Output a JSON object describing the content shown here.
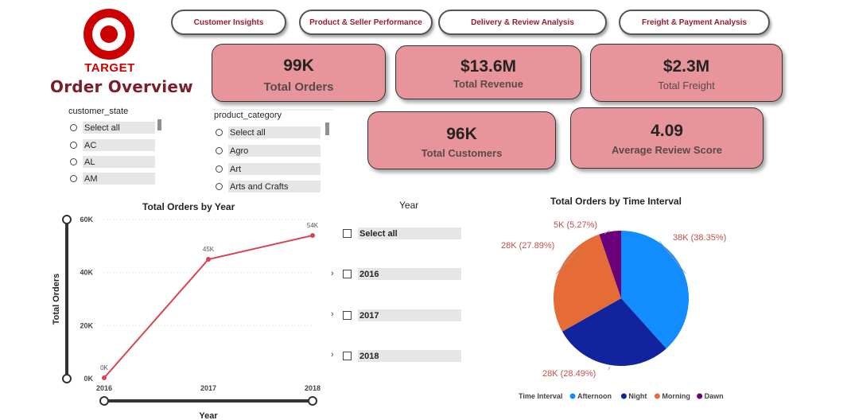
{
  "header": {
    "brand": "TARGET",
    "title": "Order Overview"
  },
  "nav": [
    {
      "label": "Customer Insights"
    },
    {
      "label": "Product & Seller Performance"
    },
    {
      "label": "Delivery & Review Analysis"
    },
    {
      "label": "Freight & Payment Analysis"
    }
  ],
  "kpis": {
    "orders": {
      "value": "99K",
      "label": "Total Orders"
    },
    "revenue": {
      "value": "$13.6M",
      "label": "Total Revenue"
    },
    "freight": {
      "value": "$2.3M",
      "label": "Total Freight"
    },
    "customers": {
      "value": "96K",
      "label": "Total Customers"
    },
    "review": {
      "value": "4.09",
      "label": "Average Review Score"
    }
  },
  "customer_state_slicer": {
    "title": "customer_state",
    "items": [
      "Select all",
      "AC",
      "AL",
      "AM"
    ]
  },
  "product_category_slicer": {
    "title": "product_category",
    "items": [
      "Select all",
      "Agro",
      "Art",
      "Arts and Crafts"
    ]
  },
  "year_slicer": {
    "title": "Year",
    "items": [
      "Select all",
      "2016",
      "2017",
      "2018"
    ]
  },
  "colors": {
    "brand_red": "#cc0000",
    "kpi_fill": "#e7949a",
    "line": "#d64550",
    "afternoon": "#118dff",
    "night": "#12239e",
    "morning": "#e66c37",
    "dawn": "#6b007b"
  },
  "chart_data": [
    {
      "type": "line",
      "title": "Total Orders by Year",
      "xlabel": "Year",
      "ylabel": "Total Orders",
      "x": [
        "2016",
        "2017",
        "2018"
      ],
      "series": [
        {
          "values": [
            0.3,
            45,
            54
          ]
        }
      ],
      "data_labels": [
        "0K",
        "45K",
        "54K"
      ],
      "yticks": [
        "0K",
        "20K",
        "40K",
        "60K"
      ],
      "ylim": [
        0,
        60
      ],
      "grid": true
    },
    {
      "type": "pie",
      "title": "Total Orders by Time Interval",
      "legend_title": "Time Interval",
      "legend_position": "bottom",
      "slices": [
        {
          "name": "Afternoon",
          "value": 38.35,
          "label": "38K (38.35%)"
        },
        {
          "name": "Night",
          "value": 28.49,
          "label": "28K (28.49%)"
        },
        {
          "name": "Morning",
          "value": 27.89,
          "label": "28K (27.89%)"
        },
        {
          "name": "Dawn",
          "value": 5.27,
          "label": "5K (5.27%)"
        }
      ]
    }
  ]
}
